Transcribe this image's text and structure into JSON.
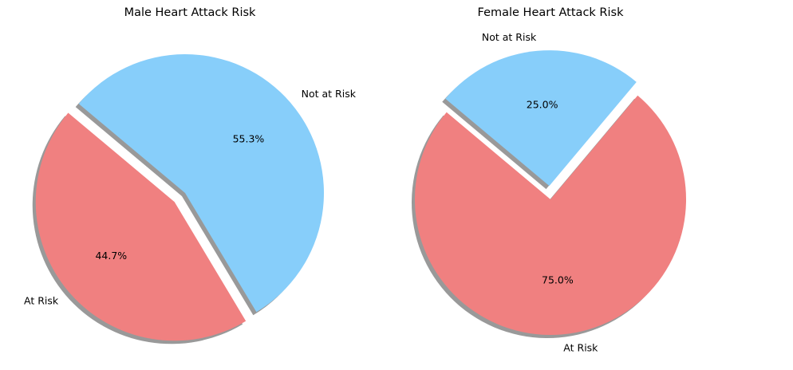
{
  "chart_data": [
    {
      "type": "pie",
      "title": "Male Heart Attack Risk",
      "categories": [
        "At Risk",
        "Not at Risk"
      ],
      "values": [
        44.7,
        55.3
      ],
      "value_labels": [
        "44.7%",
        "55.3%"
      ],
      "colors": [
        "#f08080",
        "#87cefa"
      ],
      "explode": [
        0.1,
        0
      ],
      "start_angle_deg": 140,
      "shadow": true
    },
    {
      "type": "pie",
      "title": "Female Heart Attack Risk",
      "categories": [
        "At Risk",
        "Not at Risk"
      ],
      "values": [
        75.0,
        25.0
      ],
      "value_labels": [
        "75.0%",
        "25.0%"
      ],
      "colors": [
        "#f08080",
        "#87cefa"
      ],
      "explode": [
        0,
        0.1
      ],
      "start_angle_deg": 140,
      "shadow": true
    }
  ]
}
